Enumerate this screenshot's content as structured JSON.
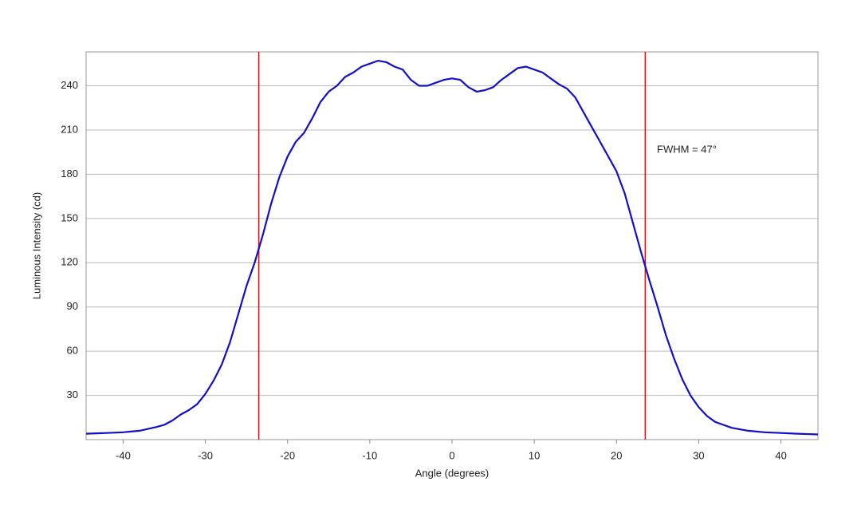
{
  "chart_data": {
    "type": "line",
    "x_label": "Angle (degrees)",
    "y_label": "Luminous Intensity (cd)",
    "annotation": "FWHM = 47°",
    "x": [
      -44.5,
      -42,
      -40,
      -38,
      -36,
      -35,
      -34,
      -33,
      -32,
      -31,
      -30,
      -29,
      -28,
      -27,
      -26,
      -25,
      -24,
      -23,
      -22,
      -21,
      -20,
      -19,
      -18,
      -17,
      -16,
      -15,
      -14,
      -13,
      -12,
      -11,
      -10,
      -9,
      -8,
      -7,
      -6,
      -5,
      -4,
      -3,
      -2,
      -1,
      0,
      1,
      2,
      3,
      4,
      5,
      6,
      7,
      8,
      9,
      10,
      11,
      12,
      13,
      14,
      15,
      16,
      17,
      18,
      19,
      20,
      21,
      22,
      23,
      24,
      25,
      26,
      27,
      28,
      29,
      30,
      31,
      32,
      33,
      34,
      35,
      36,
      38,
      40,
      42,
      44.5
    ],
    "series": [
      {
        "name": "Intensity",
        "color": "#1010cc",
        "values": [
          4,
          4.5,
          5,
          6,
          8.5,
          10,
          13,
          17,
          20,
          24,
          31,
          40,
          51,
          66,
          85,
          104,
          120,
          139,
          160,
          178,
          192,
          202,
          208,
          218,
          229,
          236,
          240,
          246,
          249,
          253,
          255,
          257,
          256,
          253,
          251,
          244,
          240,
          240,
          242,
          244,
          245,
          244,
          239,
          236,
          237,
          239,
          244,
          248,
          252,
          253,
          251,
          249,
          245,
          241,
          238,
          232,
          222,
          212,
          202,
          192,
          182,
          167,
          147,
          127,
          108,
          90,
          71,
          55,
          41,
          30,
          22,
          16,
          12,
          10,
          8,
          7,
          6,
          5,
          4.5,
          4,
          3.5
        ]
      }
    ],
    "vlines": [
      -23.5,
      23.5
    ],
    "vline_color": "#dd1111",
    "xlim": [
      -44.5,
      44.5
    ],
    "xticks": [
      -40,
      -30,
      -20,
      -10,
      0,
      10,
      20,
      30,
      40
    ],
    "ylim": [
      0,
      263
    ],
    "yticks": [
      30,
      60,
      90,
      120,
      150,
      180,
      210,
      240
    ],
    "grid": true
  }
}
